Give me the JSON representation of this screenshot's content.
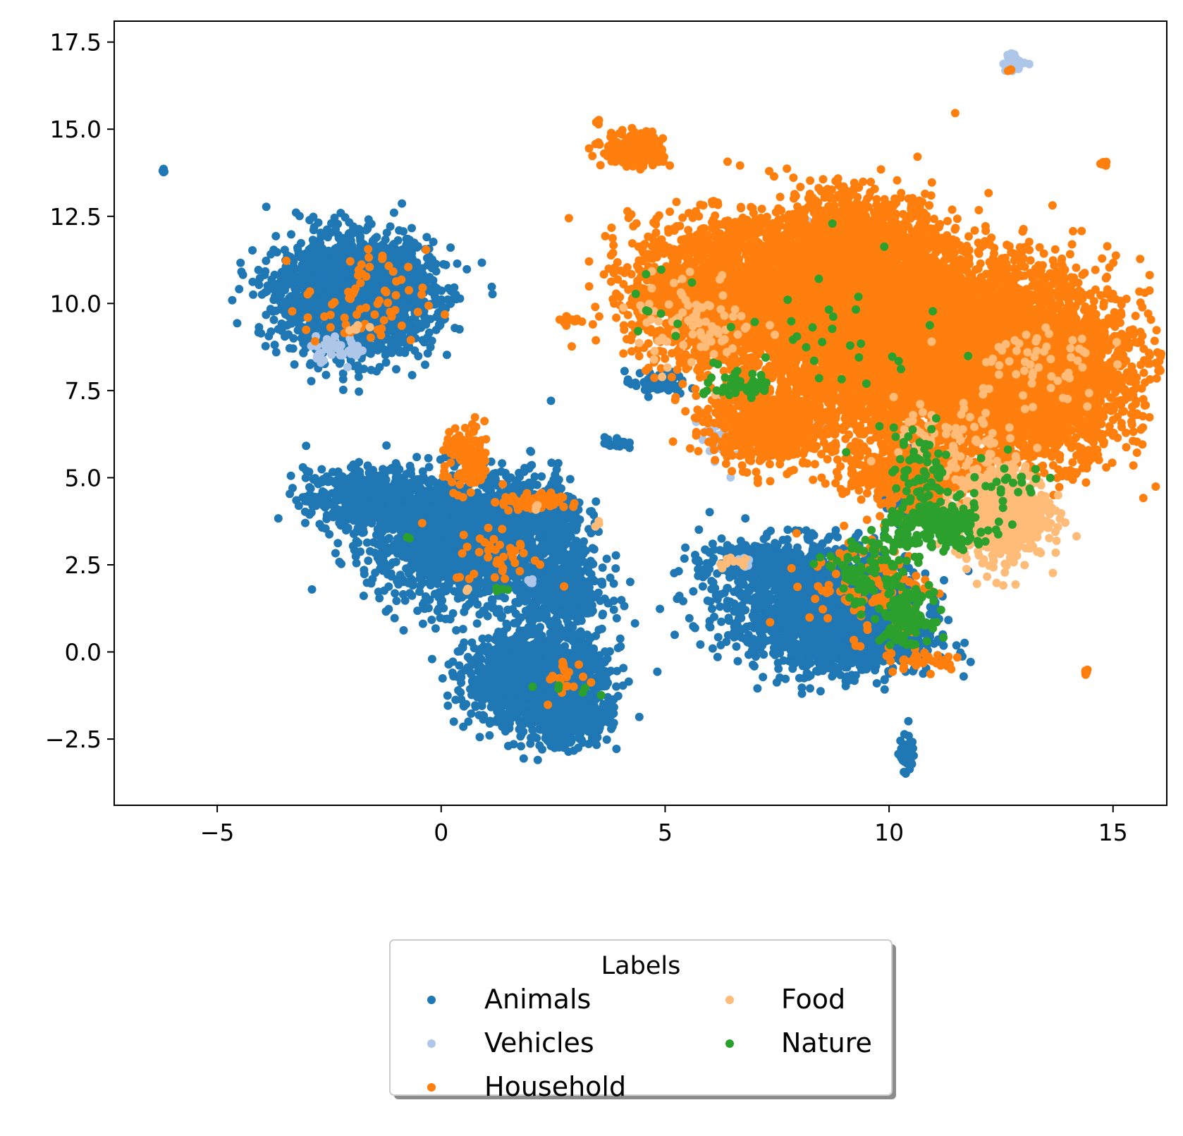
{
  "chart_data": {
    "type": "scatter",
    "title": "",
    "xlabel": "",
    "ylabel": "",
    "xlim": [
      -7.3,
      16.2
    ],
    "ylim": [
      -4.4,
      18.1
    ],
    "xticks": [
      -5,
      0,
      5,
      10,
      15
    ],
    "yticks": [
      -2.5,
      0.0,
      2.5,
      5.0,
      7.5,
      10.0,
      12.5,
      15.0,
      17.5
    ],
    "xtick_labels": [
      "−5",
      "0",
      "5",
      "10",
      "15"
    ],
    "ytick_labels": [
      "−2.5",
      "0.0",
      "2.5",
      "5.0",
      "7.5",
      "10.0",
      "12.5",
      "15.0",
      "17.5"
    ],
    "grid": false,
    "legend": {
      "title": "Labels",
      "placement": "below plot, centered, 2 columns",
      "entries": [
        "Animals",
        "Vehicles",
        "Household",
        "Food",
        "Nature"
      ]
    },
    "series": [
      {
        "name": "Animals",
        "color": "#1f77b4",
        "clusters": [
          {
            "cx": -1.9,
            "cy": 10.2,
            "sx": 1.0,
            "sy": 0.95,
            "n": 2200
          },
          {
            "cx": 0.5,
            "cy": 3.2,
            "sx": 1.2,
            "sy": 1.1,
            "n": 1500
          },
          {
            "cx": -1.5,
            "cy": 4.4,
            "sx": 0.9,
            "sy": 0.5,
            "n": 600
          },
          {
            "cx": 2.2,
            "cy": 3.8,
            "sx": 0.6,
            "sy": 0.7,
            "n": 400
          },
          {
            "cx": 2.7,
            "cy": 1.7,
            "sx": 0.6,
            "sy": 0.6,
            "n": 400
          },
          {
            "cx": 2.1,
            "cy": -0.8,
            "sx": 0.9,
            "sy": 0.8,
            "n": 1400
          },
          {
            "cx": 2.9,
            "cy": -1.9,
            "sx": 0.5,
            "sy": 0.5,
            "n": 300
          },
          {
            "cx": 8.4,
            "cy": 1.3,
            "sx": 1.2,
            "sy": 1.0,
            "n": 1500
          },
          {
            "cx": 9.5,
            "cy": 0.4,
            "sx": 0.9,
            "sy": 0.6,
            "n": 600
          },
          {
            "cx": 7.1,
            "cy": 2.6,
            "sx": 0.8,
            "sy": 0.3,
            "n": 300
          },
          {
            "cx": 10.4,
            "cy": -2.9,
            "sx": 0.1,
            "sy": 0.3,
            "n": 60
          },
          {
            "cx": 4.8,
            "cy": 7.7,
            "sx": 0.4,
            "sy": 0.2,
            "n": 60
          },
          {
            "cx": 3.9,
            "cy": 6.0,
            "sx": 0.15,
            "sy": 0.1,
            "n": 25
          },
          {
            "cx": 10.3,
            "cy": 4.7,
            "sx": 0.3,
            "sy": 0.6,
            "n": 80
          },
          {
            "cx": -6.2,
            "cy": 13.8,
            "sx": 0.02,
            "sy": 0.05,
            "n": 5
          }
        ]
      },
      {
        "name": "Vehicles",
        "color": "#aec7e8",
        "clusters": [
          {
            "cx": 12.8,
            "cy": 16.9,
            "sx": 0.15,
            "sy": 0.15,
            "n": 40
          },
          {
            "cx": 6.3,
            "cy": 6.3,
            "sx": 0.3,
            "sy": 0.5,
            "n": 60
          },
          {
            "cx": 8.0,
            "cy": 12.2,
            "sx": 0.2,
            "sy": 0.2,
            "n": 30
          },
          {
            "cx": 7.7,
            "cy": 6.6,
            "sx": 0.4,
            "sy": 0.4,
            "n": 60
          },
          {
            "cx": -2.3,
            "cy": 8.7,
            "sx": 0.4,
            "sy": 0.2,
            "n": 40
          },
          {
            "cx": 6.8,
            "cy": 2.6,
            "sx": 0.1,
            "sy": 0.1,
            "n": 10
          },
          {
            "cx": 2.0,
            "cy": 2.0,
            "sx": 0.05,
            "sy": 0.05,
            "n": 5
          }
        ]
      },
      {
        "name": "Household",
        "color": "#ff7f0e",
        "clusters": [
          {
            "cx": 11.6,
            "cy": 8.6,
            "sx": 2.0,
            "sy": 1.5,
            "n": 5500
          },
          {
            "cx": 9.2,
            "cy": 10.0,
            "sx": 1.4,
            "sy": 1.5,
            "n": 3000
          },
          {
            "cx": 6.3,
            "cy": 10.3,
            "sx": 1.2,
            "sy": 1.2,
            "n": 2000
          },
          {
            "cx": 13.5,
            "cy": 7.5,
            "sx": 1.0,
            "sy": 1.2,
            "n": 1500
          },
          {
            "cx": 9.0,
            "cy": 11.6,
            "sx": 0.8,
            "sy": 0.8,
            "n": 900
          },
          {
            "cx": 7.3,
            "cy": 6.6,
            "sx": 0.8,
            "sy": 0.7,
            "n": 700
          },
          {
            "cx": 10.4,
            "cy": 5.2,
            "sx": 0.8,
            "sy": 0.6,
            "n": 500
          },
          {
            "cx": 4.3,
            "cy": 14.4,
            "sx": 0.4,
            "sy": 0.3,
            "n": 200
          },
          {
            "cx": 14.8,
            "cy": 14.0,
            "sx": 0.05,
            "sy": 0.05,
            "n": 10
          },
          {
            "cx": 14.4,
            "cy": -0.55,
            "sx": 0.05,
            "sy": 0.05,
            "n": 8
          },
          {
            "cx": 12.7,
            "cy": 16.7,
            "sx": 0.03,
            "sy": 0.03,
            "n": 5
          },
          {
            "cx": 3.5,
            "cy": 15.2,
            "sx": 0.03,
            "sy": 0.03,
            "n": 5
          },
          {
            "cx": 0.6,
            "cy": 5.5,
            "sx": 0.3,
            "sy": 0.6,
            "n": 120
          },
          {
            "cx": 2.0,
            "cy": 4.3,
            "sx": 0.4,
            "sy": 0.15,
            "n": 80
          },
          {
            "cx": -1.7,
            "cy": 10.0,
            "sx": 0.8,
            "sy": 0.9,
            "n": 70
          },
          {
            "cx": 9.6,
            "cy": 2.0,
            "sx": 0.8,
            "sy": 0.9,
            "n": 120
          },
          {
            "cx": 10.8,
            "cy": -0.2,
            "sx": 0.5,
            "sy": 0.2,
            "n": 40
          },
          {
            "cx": 2.8,
            "cy": -0.8,
            "sx": 0.3,
            "sy": 0.4,
            "n": 20
          },
          {
            "cx": 1.3,
            "cy": 2.8,
            "sx": 0.6,
            "sy": 0.5,
            "n": 40
          },
          {
            "cx": 2.9,
            "cy": 9.5,
            "sx": 0.2,
            "sy": 0.1,
            "n": 15
          },
          {
            "cx": 6.1,
            "cy": 12.9,
            "sx": 0.05,
            "sy": 0.05,
            "n": 5
          },
          {
            "cx": 10.6,
            "cy": 12.8,
            "sx": 0.1,
            "sy": 0.4,
            "n": 20
          }
        ]
      },
      {
        "name": "Food",
        "color": "#ffbb78",
        "clusters": [
          {
            "cx": 12.5,
            "cy": 4.0,
            "sx": 0.6,
            "sy": 0.8,
            "n": 700
          },
          {
            "cx": 13.2,
            "cy": 8.3,
            "sx": 0.9,
            "sy": 0.8,
            "n": 60
          },
          {
            "cx": 5.7,
            "cy": 9.5,
            "sx": 0.8,
            "sy": 0.8,
            "n": 80
          },
          {
            "cx": 11.3,
            "cy": 6.0,
            "sx": 0.7,
            "sy": 0.7,
            "n": 60
          },
          {
            "cx": 6.5,
            "cy": 2.6,
            "sx": 0.2,
            "sy": 0.1,
            "n": 10
          },
          {
            "cx": -1.8,
            "cy": 9.3,
            "sx": 0.2,
            "sy": 0.2,
            "n": 5
          },
          {
            "cx": 3.5,
            "cy": 3.7,
            "sx": 0.05,
            "sy": 0.05,
            "n": 3
          },
          {
            "cx": 0.6,
            "cy": 1.8,
            "sx": 0.05,
            "sy": 0.05,
            "n": 3
          },
          {
            "cx": 2.1,
            "cy": 4.2,
            "sx": 0.05,
            "sy": 0.05,
            "n": 3
          }
        ]
      },
      {
        "name": "Nature",
        "color": "#2ca02c",
        "clusters": [
          {
            "cx": 11.1,
            "cy": 3.6,
            "sx": 0.7,
            "sy": 0.4,
            "n": 220
          },
          {
            "cx": 10.4,
            "cy": 1.0,
            "sx": 0.3,
            "sy": 0.4,
            "n": 150
          },
          {
            "cx": 9.5,
            "cy": 2.3,
            "sx": 0.6,
            "sy": 0.6,
            "n": 100
          },
          {
            "cx": 10.7,
            "cy": 5.3,
            "sx": 0.4,
            "sy": 0.7,
            "n": 60
          },
          {
            "cx": 6.8,
            "cy": 7.6,
            "sx": 0.4,
            "sy": 0.2,
            "n": 50
          },
          {
            "cx": 12.6,
            "cy": 4.7,
            "sx": 0.6,
            "sy": 0.5,
            "n": 25
          },
          {
            "cx": 8.5,
            "cy": 8.8,
            "sx": 1.5,
            "sy": 1.5,
            "n": 40
          },
          {
            "cx": 4.8,
            "cy": 9.9,
            "sx": 0.5,
            "sy": 0.8,
            "n": 10
          },
          {
            "cx": 3.0,
            "cy": -1.1,
            "sx": 0.5,
            "sy": 0.1,
            "n": 6
          },
          {
            "cx": 1.3,
            "cy": 1.8,
            "sx": 0.2,
            "sy": 0.05,
            "n": 4
          },
          {
            "cx": -0.7,
            "cy": 3.3,
            "sx": 0.05,
            "sy": 0.05,
            "n": 2
          }
        ]
      }
    ]
  }
}
